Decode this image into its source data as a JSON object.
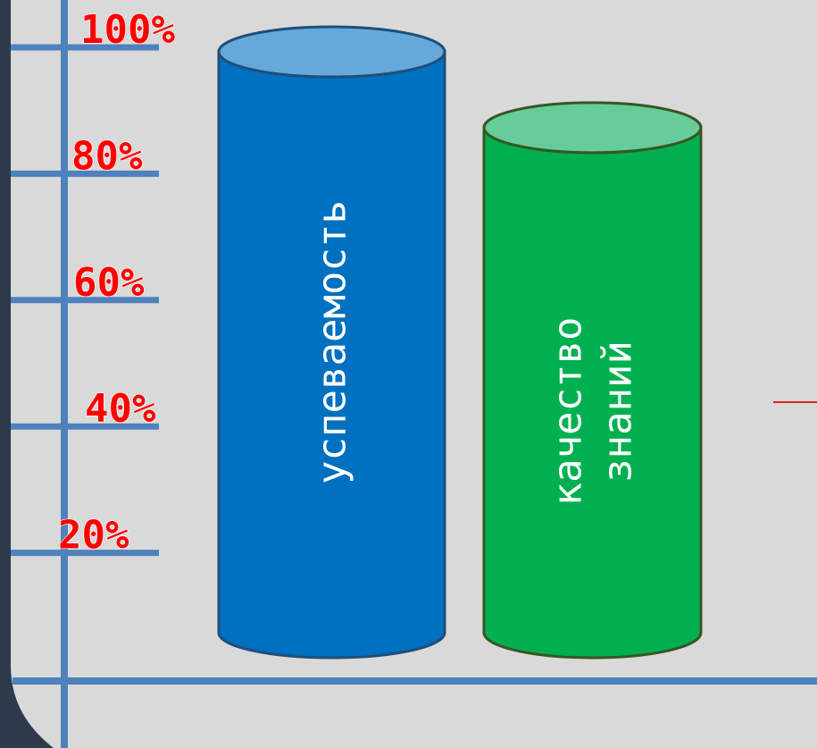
{
  "chart_data": {
    "type": "bar",
    "categories": [
      "успеваемость",
      "качество знаний"
    ],
    "values": [
      100,
      88
    ],
    "ylim": [
      0,
      100
    ],
    "yticks": [
      20,
      40,
      60,
      80,
      100
    ],
    "ytick_labels": [
      "20%",
      "40%",
      "60%",
      "80%",
      "100%"
    ],
    "bar_labels": [
      [
        "успеваемость"
      ],
      [
        "качество",
        "знаний"
      ]
    ],
    "xlabel": "",
    "ylabel": "",
    "grid": false
  },
  "colors": {
    "background": "#d9d9d9",
    "axis": "#4f81bd",
    "tick_label": "#ff0000",
    "bars": [
      {
        "body": "#0070c0",
        "top": "#65a9db",
        "edge": "#1f4e79"
      },
      {
        "body": "#00b050",
        "top": "#66cc99",
        "edge": "#375623"
      }
    ],
    "bar_text": "#ffffff",
    "accent_line": "#e02020"
  }
}
